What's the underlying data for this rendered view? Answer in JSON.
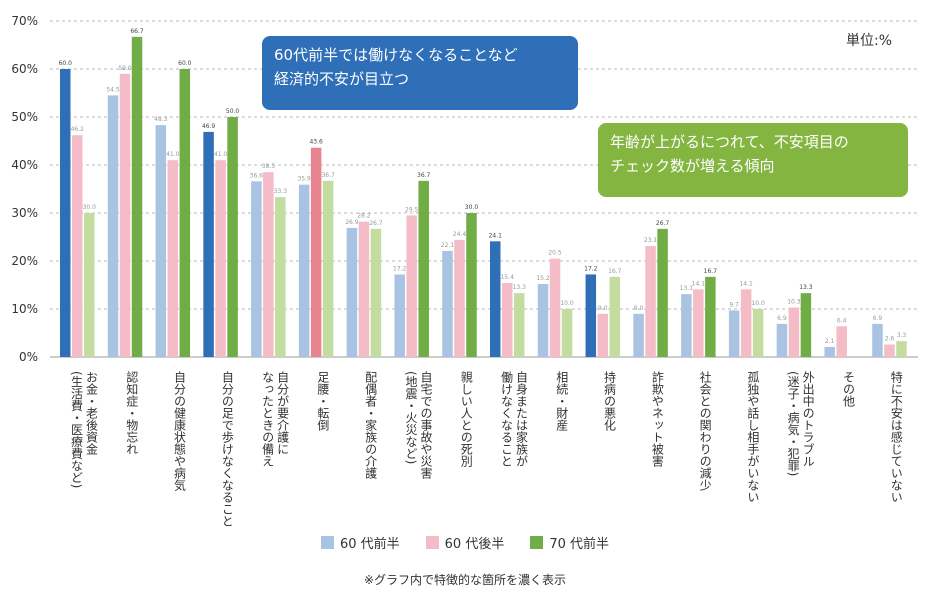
{
  "unit_label": "単位:%",
  "callouts": {
    "blue": [
      "60代前半では働けなくなることなど",
      "経済的不安が目立つ"
    ],
    "green": [
      "年齢が上がるにつれて、不安項目の",
      "チェック数が増える傾向"
    ]
  },
  "footnote": "※グラフ内で特徴的な箇所を濃く表示",
  "colors": {
    "s1_light": "#a9c4e3",
    "s1_dark": "#2f6fb8",
    "s2_light": "#f4bcc6",
    "s2_dark": "#e8848f",
    "s3_light": "#c3dca0",
    "s3_dark": "#70ad47"
  },
  "chart_data": {
    "type": "bar",
    "ylim": [
      0,
      70
    ],
    "yticks": [
      "0%",
      "10%",
      "20%",
      "30%",
      "40%",
      "50%",
      "60%",
      "70%"
    ],
    "grid": true,
    "legend_position": "bottom",
    "categories": [
      [
        "お金・老後資金",
        "(生活費・医療費など)"
      ],
      [
        "認知症・物忘れ"
      ],
      [
        "自分の健康状態や病気"
      ],
      [
        "自分の足で歩けなくなること"
      ],
      [
        "自分が要介護に",
        "なったときの備え"
      ],
      [
        "足腰・転倒"
      ],
      [
        "配偶者・家族の介護"
      ],
      [
        "自宅での事故や災害",
        "(地震・火災など)"
      ],
      [
        "親しい人との死別"
      ],
      [
        "自身または家族が",
        "働けなくなること"
      ],
      [
        "相続・財産"
      ],
      [
        "持病の悪化"
      ],
      [
        "詐欺やネット被害"
      ],
      [
        "社会との関わりの減少"
      ],
      [
        "孤独や話し相手がいない"
      ],
      [
        "外出中のトラブル",
        "(迷子・病気・犯罪)"
      ],
      [
        "その他"
      ],
      [
        "特に不安は感じていない"
      ]
    ],
    "series": [
      {
        "name": "60 代前半",
        "values": [
          60.0,
          54.5,
          48.3,
          46.9,
          36.6,
          35.9,
          26.9,
          17.2,
          22.1,
          24.1,
          15.2,
          17.2,
          9.0,
          13.1,
          9.7,
          6.9,
          2.1,
          6.9
        ],
        "labels": [
          "60.0",
          "54.5",
          "48.3",
          "46.9",
          "36.6",
          "35.9",
          "26.9",
          "17.2",
          "22.1",
          "24.1",
          "15.2",
          "17.2",
          "9.0",
          "13.1",
          "9.7",
          "6.9",
          "2.1",
          "6.9"
        ],
        "highlight": [
          true,
          false,
          false,
          true,
          false,
          false,
          false,
          false,
          false,
          true,
          false,
          true,
          false,
          false,
          false,
          false,
          false,
          false
        ]
      },
      {
        "name": "60 代後半",
        "values": [
          46.2,
          59.0,
          41.0,
          41.0,
          38.5,
          43.6,
          28.2,
          29.5,
          24.4,
          15.4,
          20.5,
          9.0,
          23.1,
          14.1,
          14.1,
          10.3,
          6.4,
          2.6
        ],
        "labels": [
          "46.2",
          "59.0",
          "41.0",
          "41.0",
          "38.5",
          "43.6",
          "28.2",
          "29.5",
          "24.4",
          "15.4",
          "20.5",
          "9.0",
          "23.1",
          "14.1",
          "14.1",
          "10.3",
          "6.4",
          "2.6"
        ],
        "highlight": [
          false,
          false,
          false,
          false,
          false,
          true,
          false,
          false,
          false,
          false,
          false,
          false,
          false,
          false,
          false,
          false,
          false,
          false
        ]
      },
      {
        "name": "70 代前半",
        "values": [
          30.0,
          66.7,
          60.0,
          50.0,
          33.3,
          36.7,
          26.7,
          36.7,
          30.0,
          13.3,
          10.0,
          16.7,
          26.7,
          16.7,
          10.0,
          13.3,
          null,
          3.3
        ],
        "labels": [
          "30.0",
          "66.7",
          "60.0",
          "50.0",
          "33.3",
          "36.7",
          "26.7",
          "36.7",
          "30.0",
          "13.3",
          "10.0",
          "16.7",
          "26.7",
          "16.7",
          "10.0",
          "13.3",
          null,
          "3.3"
        ],
        "highlight": [
          false,
          true,
          true,
          true,
          false,
          false,
          false,
          true,
          true,
          false,
          false,
          false,
          true,
          true,
          false,
          true,
          false,
          false
        ]
      }
    ]
  }
}
